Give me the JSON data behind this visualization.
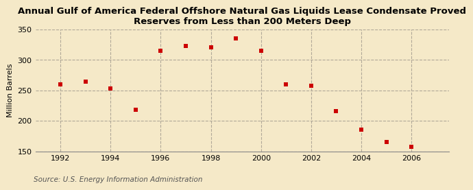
{
  "title": "Annual Gulf of America Federal Offshore Natural Gas Liquids Lease Condensate Proved\nReserves from Less than 200 Meters Deep",
  "ylabel": "Million Barrels",
  "source": "Source: U.S. Energy Information Administration",
  "years_all": [
    1992,
    1993,
    1994,
    1995,
    1996,
    1997,
    1998,
    1999,
    2000,
    2001,
    2002,
    2003,
    2004,
    2005,
    2006
  ],
  "values_all": [
    260,
    265,
    253,
    218,
    315,
    323,
    321,
    335,
    315,
    260,
    258,
    216,
    186,
    165,
    157
  ],
  "marker_color": "#cc0000",
  "marker_size": 5,
  "background_color": "#f5e9c8",
  "plot_bg_color": "#f5e9c8",
  "grid_color": "#b0a898",
  "ylim": [
    150,
    350
  ],
  "yticks": [
    150,
    200,
    250,
    300,
    350
  ],
  "xlim": [
    1991.0,
    2007.5
  ],
  "xticks": [
    1992,
    1994,
    1996,
    1998,
    2000,
    2002,
    2004,
    2006
  ],
  "title_fontsize": 9.5,
  "axis_fontsize": 8,
  "source_fontsize": 7.5
}
